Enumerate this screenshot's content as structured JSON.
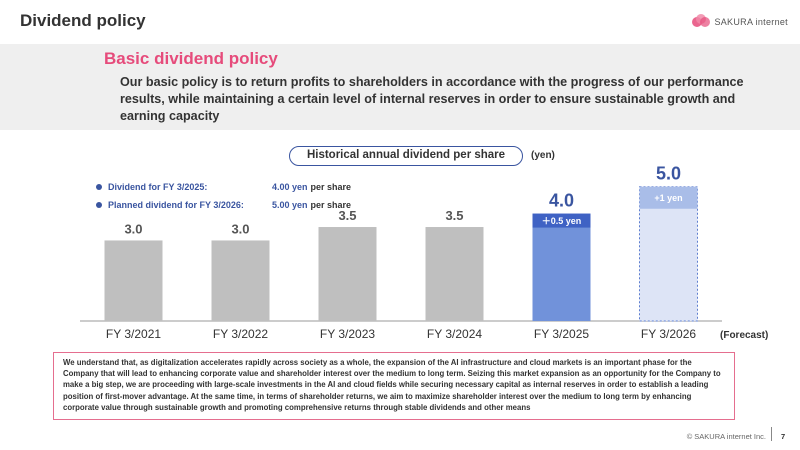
{
  "header": {
    "title": "Dividend policy",
    "logo_text": "SAKURA internet"
  },
  "policy": {
    "title": "Basic dividend policy",
    "text": "Our basic policy is to return profits to shareholders in accordance with the progress of our performance results, while maintaining a certain level of internal reserves in order to ensure sustainable growth and earning capacity"
  },
  "chart_header": {
    "pill": "Historical annual dividend per share",
    "unit": "(yen)"
  },
  "legend": [
    {
      "name": "Dividend for FY 3/2025:",
      "value": "4.00 yen",
      "suffix": "per share"
    },
    {
      "name": "Planned dividend for FY 3/2026:",
      "value": "5.00 yen",
      "suffix": "per share"
    }
  ],
  "forecast_label": "(Forecast)",
  "colors": {
    "bar_gray": "#bfbfbf",
    "bar_blue": "#7192da",
    "bar_forecast": "#dde4f6",
    "highlight": "#3a55a0",
    "accent_pink": "#e64b7b"
  },
  "chart_data": {
    "type": "bar",
    "title": "Historical annual dividend per share",
    "ylabel": "(yen)",
    "categories": [
      "FY 3/2021",
      "FY 3/2022",
      "FY 3/2023",
      "FY 3/2024",
      "FY 3/2025",
      "FY 3/2026"
    ],
    "values": [
      3.0,
      3.0,
      3.5,
      3.5,
      4.0,
      5.0
    ],
    "value_labels": [
      "3.0",
      "3.0",
      "3.5",
      "3.5",
      "4.0",
      "5.0"
    ],
    "styles": [
      "actual",
      "actual",
      "actual",
      "actual",
      "highlight",
      "forecast"
    ],
    "increments": [
      null,
      null,
      null,
      null,
      "＋0.5 yen",
      "+1 yen"
    ],
    "ylim": [
      0,
      5.4
    ]
  },
  "note": "We understand that, as digitalization accelerates rapidly across society as a whole, the expansion of the AI infrastructure and cloud markets is an important phase for the Company that will lead to enhancing corporate value and shareholder interest over the medium to long term. Seizing this market expansion as an opportunity for the Company to make a big step, we are proceeding with large-scale investments in the AI and cloud fields while securing necessary capital as internal reserves in order to establish a leading position of first-mover advantage. At the same time, in terms of shareholder returns, we aim to maximize shareholder interest over the medium to long term by enhancing corporate value through sustainable growth and promoting comprehensive returns through stable dividends and other means",
  "footer": {
    "copyright": "© SAKURA internet Inc.",
    "page": "7"
  }
}
